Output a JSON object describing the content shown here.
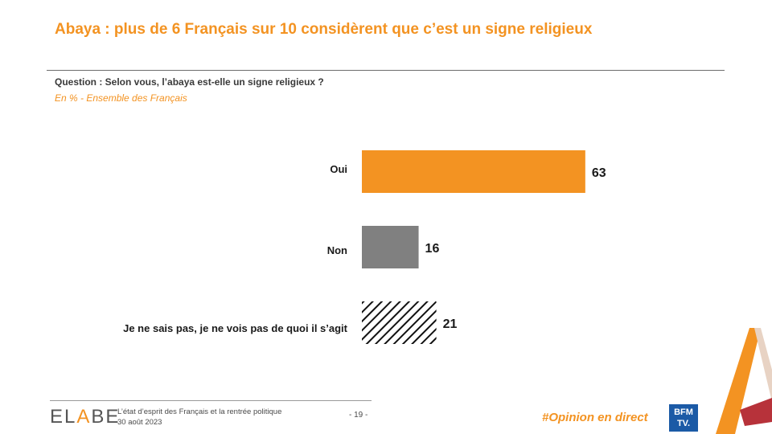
{
  "header": {
    "title": "Abaya : plus de 6 Français sur 10 considèrent que c’est un signe religieux",
    "question": "Question : Selon vous, l’abaya est-elle un signe religieux ?",
    "subtitle": "En % - Ensemble des Français"
  },
  "chart_data": {
    "type": "bar",
    "orientation": "horizontal",
    "categories": [
      "Oui",
      "Non",
      "Je ne sais pas, je ne vois pas de quoi il s’agit"
    ],
    "values": [
      63,
      16,
      21
    ],
    "value_labels": [
      "63",
      "16",
      "21"
    ],
    "colors": [
      "#f39322",
      "#808080",
      "hatched-black"
    ],
    "xlim": [
      0,
      100
    ],
    "grid": false,
    "legend": "none"
  },
  "footer": {
    "logo": {
      "part1": "EL",
      "part2": "A",
      "part3": "BE"
    },
    "line1": "L’état d’esprit des Français et la rentrée politique",
    "line2": "30 août 2023",
    "page": "- 19 -",
    "hashtag": "#Opinion en direct",
    "bfm": {
      "line1": "BFM",
      "line2": "TV."
    }
  },
  "colors": {
    "accent": "#f39322",
    "gray": "#808080",
    "bfm_blue": "#1b5aa6"
  }
}
